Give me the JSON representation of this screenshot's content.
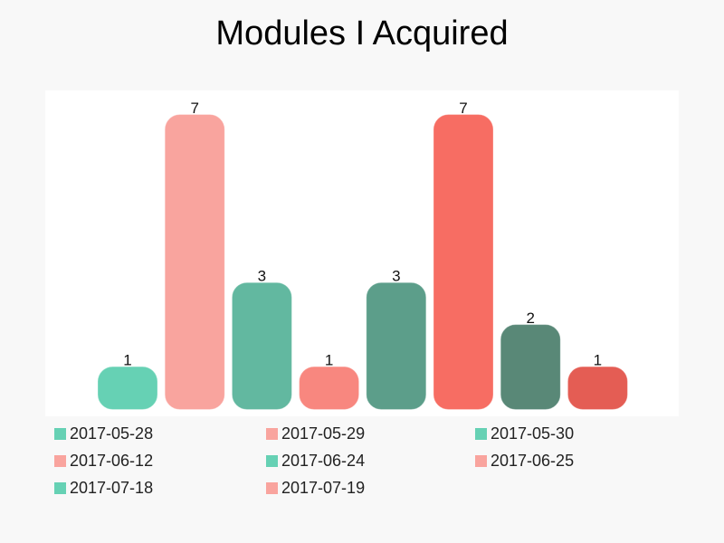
{
  "chart_data": {
    "type": "bar",
    "title": "Modules I Acquired",
    "categories": [
      "2017-05-28",
      "2017-05-29",
      "2017-05-30",
      "2017-06-12",
      "2017-06-24",
      "2017-06-25",
      "2017-07-18",
      "2017-07-19"
    ],
    "values": [
      1,
      7,
      3,
      1,
      3,
      7,
      2,
      1
    ],
    "bar_colors": [
      "#66d1b4",
      "#f9a49e",
      "#62b8a0",
      "#f8877f",
      "#5c9e8a",
      "#f76d63",
      "#598877",
      "#e45d54"
    ],
    "legend_colors": [
      "#66d1b4",
      "#f9a49e",
      "#66d1b4",
      "#f9a49e",
      "#66d1b4",
      "#f9a49e",
      "#66d1b4",
      "#f9a49e"
    ],
    "ylim": [
      0,
      7.4
    ],
    "grid": false,
    "legend_position": "bottom",
    "plot_background": "#ffffff",
    "page_background": "#f8f8f8"
  }
}
